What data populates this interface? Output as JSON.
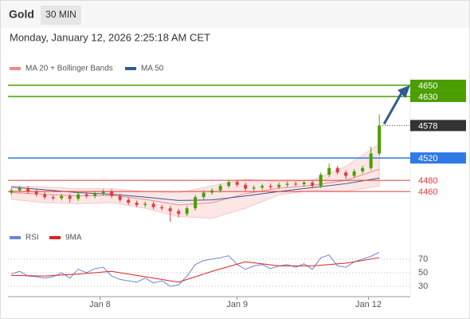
{
  "header": {
    "instrument": "Gold",
    "timeframe": "30 MIN",
    "timestamp": "Monday, January 12, 2026 2:25:18 AM CET"
  },
  "chart_data": [
    {
      "type": "candlestick",
      "xlim": [
        -0.4,
        47.7
      ],
      "ylim": [
        4396,
        4667
      ],
      "up_color": "#4a9e00",
      "down_color": "#e23b3b",
      "candles": {
        "x": [
          0,
          1,
          2,
          3,
          4,
          5,
          6,
          7,
          8,
          9,
          10,
          11,
          12,
          13,
          14,
          15,
          16,
          17,
          18,
          19,
          20,
          21,
          22,
          23,
          24,
          25,
          26,
          27,
          28,
          29,
          30,
          31,
          32,
          33,
          34,
          35,
          36,
          37,
          38,
          39,
          40,
          41,
          42,
          43,
          44
        ],
        "open": [
          4458,
          4462,
          4466,
          4460,
          4455,
          4450,
          4448,
          4452,
          4447,
          4455,
          4452,
          4457,
          4460,
          4452,
          4445,
          4440,
          4436,
          4438,
          4432,
          4430,
          4425,
          4420,
          4430,
          4450,
          4458,
          4462,
          4470,
          4477,
          4472,
          4465,
          4467,
          4470,
          4468,
          4472,
          4474,
          4473,
          4476,
          4470,
          4490,
          4502,
          4494,
          4488,
          4496,
          4502,
          4528
        ],
        "high": [
          4466,
          4470,
          4470,
          4464,
          4459,
          4454,
          4456,
          4456,
          4459,
          4459,
          4461,
          4464,
          4464,
          4456,
          4449,
          4444,
          4442,
          4442,
          4436,
          4434,
          4429,
          4434,
          4454,
          4462,
          4466,
          4474,
          4481,
          4481,
          4476,
          4471,
          4474,
          4474,
          4476,
          4478,
          4478,
          4480,
          4480,
          4494,
          4510,
          4506,
          4498,
          4500,
          4506,
          4540,
          4598
        ],
        "low": [
          4454,
          4458,
          4456,
          4451,
          4446,
          4444,
          4444,
          4440,
          4443,
          4448,
          4448,
          4453,
          4448,
          4441,
          4436,
          4432,
          4432,
          4428,
          4426,
          4406,
          4414,
          4416,
          4426,
          4446,
          4454,
          4458,
          4466,
          4468,
          4461,
          4461,
          4463,
          4464,
          4464,
          4468,
          4469,
          4469,
          4466,
          4466,
          4486,
          4490,
          4482,
          4484,
          4492,
          4498,
          4524
        ],
        "close": [
          4462,
          4466,
          4460,
          4455,
          4450,
          4448,
          4452,
          4447,
          4455,
          4452,
          4457,
          4460,
          4452,
          4445,
          4440,
          4436,
          4438,
          4432,
          4430,
          4425,
          4420,
          4430,
          4450,
          4458,
          4462,
          4470,
          4477,
          4472,
          4465,
          4467,
          4470,
          4468,
          4472,
          4474,
          4473,
          4476,
          4470,
          4490,
          4502,
          4494,
          4488,
          4496,
          4502,
          4528,
          4578
        ]
      },
      "series": [
        {
          "name": "MA 20 + Bollinger Bands",
          "color": "#f08a8a",
          "band_color": "#fbdcdc",
          "x": [
            0,
            4,
            8,
            12,
            16,
            20,
            24,
            28,
            32,
            36,
            40,
            44
          ],
          "values": [
            4458,
            4455,
            4452,
            4453,
            4446,
            4436,
            4440,
            4456,
            4466,
            4471,
            4480,
            4500
          ],
          "upper": [
            4470,
            4468,
            4465,
            4465,
            4460,
            4458,
            4470,
            4482,
            4478,
            4480,
            4505,
            4545
          ],
          "lower": [
            4446,
            4440,
            4438,
            4440,
            4430,
            4415,
            4412,
            4430,
            4454,
            4462,
            4460,
            4470
          ]
        },
        {
          "name": "MA 50",
          "color": "#2f5c8f",
          "x": [
            0,
            4,
            8,
            12,
            16,
            20,
            24,
            28,
            32,
            36,
            40,
            44
          ],
          "values": [
            4468,
            4463,
            4458,
            4455,
            4450,
            4444,
            4445,
            4452,
            4460,
            4467,
            4474,
            4484
          ]
        }
      ],
      "levels": [
        {
          "value": 4650,
          "color": "#4a9e00",
          "style": "box"
        },
        {
          "value": 4630,
          "color": "#4a9e00",
          "style": "box"
        },
        {
          "value": 4520,
          "color": "#2f7ae5",
          "style": "box"
        },
        {
          "value": 4480,
          "color": "#e23b3b",
          "style": "text"
        },
        {
          "value": 4460,
          "color": "#e23b3b",
          "style": "text"
        }
      ],
      "last_price": {
        "value": 4578,
        "color": "#333333"
      }
    },
    {
      "type": "line",
      "xlim": [
        -0.4,
        47.7
      ],
      "ylim": [
        17,
        111
      ],
      "yticks": [
        30,
        50,
        70
      ],
      "xticks": [
        {
          "value": 10.6,
          "label": "Jan 8"
        },
        {
          "value": 27,
          "label": "Jan 9"
        },
        {
          "value": 42.7,
          "label": "Jan 12"
        }
      ],
      "series": [
        {
          "name": "RSI",
          "color": "#6b86d8",
          "x": [
            0,
            1,
            2,
            3,
            4,
            5,
            6,
            7,
            8,
            9,
            10,
            11,
            12,
            13,
            14,
            15,
            16,
            17,
            18,
            19,
            20,
            21,
            22,
            23,
            24,
            25,
            26,
            27,
            28,
            29,
            30,
            31,
            32,
            33,
            34,
            35,
            36,
            37,
            38,
            39,
            40,
            41,
            42,
            43,
            44
          ],
          "values": [
            48,
            52,
            45,
            44,
            42,
            44,
            50,
            42,
            55,
            50,
            56,
            58,
            45,
            40,
            38,
            36,
            42,
            35,
            38,
            30,
            32,
            45,
            62,
            68,
            70,
            72,
            75,
            62,
            55,
            60,
            62,
            56,
            60,
            62,
            58,
            63,
            55,
            72,
            76,
            60,
            58,
            66,
            70,
            74,
            80
          ]
        },
        {
          "name": "9MA",
          "color": "#dd2222",
          "x": [
            0,
            4,
            8,
            12,
            16,
            20,
            24,
            28,
            32,
            36,
            40,
            44
          ],
          "values": [
            46,
            45,
            48,
            52,
            44,
            36,
            52,
            66,
            60,
            60,
            64,
            72
          ]
        }
      ]
    }
  ]
}
